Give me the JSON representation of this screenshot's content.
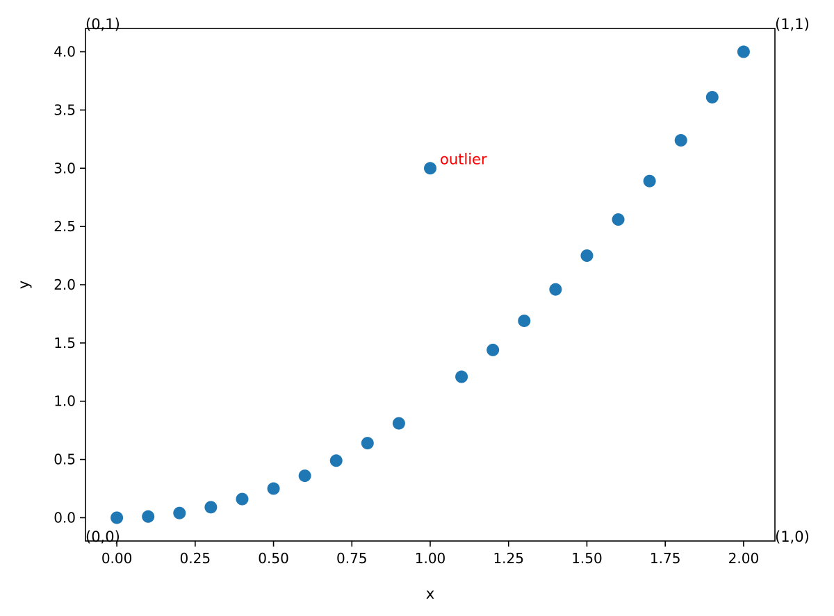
{
  "chart_data": {
    "type": "scatter",
    "title": "",
    "xlabel": "x",
    "ylabel": "y",
    "xlim": [
      -0.1,
      2.1
    ],
    "ylim": [
      -0.2,
      4.2
    ],
    "xticks": [
      0.0,
      0.25,
      0.5,
      0.75,
      1.0,
      1.25,
      1.5,
      1.75,
      2.0
    ],
    "xtick_labels": [
      "0.00",
      "0.25",
      "0.50",
      "0.75",
      "1.00",
      "1.25",
      "1.50",
      "1.75",
      "2.00"
    ],
    "yticks": [
      0.0,
      0.5,
      1.0,
      1.5,
      2.0,
      2.5,
      3.0,
      3.5,
      4.0
    ],
    "ytick_labels": [
      "0.0",
      "0.5",
      "1.0",
      "1.5",
      "2.0",
      "2.5",
      "3.0",
      "3.5",
      "4.0"
    ],
    "grid": false,
    "legend": "none",
    "series": [
      {
        "color": "#1f77b4",
        "x": [
          0.0,
          0.1,
          0.2,
          0.3,
          0.4,
          0.5,
          0.6,
          0.7,
          0.8,
          0.9,
          1.0,
          1.1,
          1.2,
          1.3,
          1.4,
          1.5,
          1.6,
          1.7,
          1.8,
          1.9,
          2.0
        ],
        "y": [
          0.0,
          0.01,
          0.04,
          0.09,
          0.16,
          0.25,
          0.36,
          0.49,
          0.64,
          0.81,
          3.0,
          1.21,
          1.44,
          1.69,
          1.96,
          2.25,
          2.56,
          2.89,
          3.24,
          3.61,
          4.0
        ]
      }
    ],
    "annotations": [
      {
        "text": "outlier",
        "x": 1.0,
        "y": 3.0,
        "color": "#ff0000"
      }
    ],
    "corner_labels": {
      "top_left": "(0,1)",
      "top_right": "(1,1)",
      "bottom_left": "(0,0)",
      "bottom_right": "(1,0)"
    }
  }
}
